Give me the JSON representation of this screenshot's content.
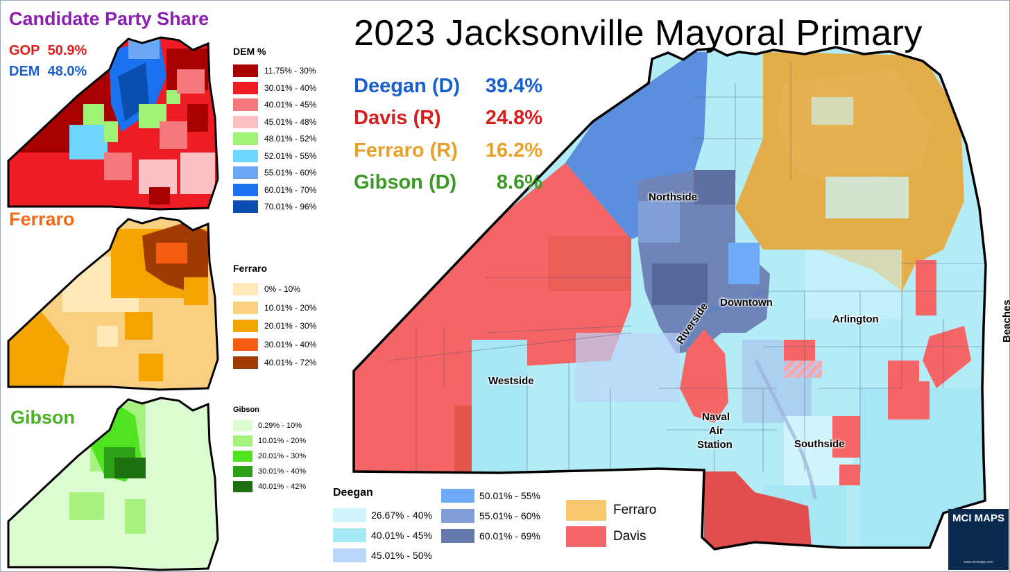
{
  "title": "2023 Jacksonville Mayoral Primary",
  "results": [
    {
      "name": "Deegan (D)",
      "pct": "39.4%",
      "color": "#1a5fd0"
    },
    {
      "name": "Davis (R)",
      "pct": "24.8%",
      "color": "#d81e1e"
    },
    {
      "name": "Ferraro (R)",
      "pct": "16.2%",
      "color": "#e8a02a"
    },
    {
      "name": "Gibson (D)",
      "pct": "8.6%",
      "color": "#3a9a24"
    }
  ],
  "party_share": {
    "title": "Candidate Party Share",
    "gop_label": "GOP",
    "gop_value": "50.9%",
    "dem_label": "DEM",
    "dem_value": "48.0%",
    "legend_title": "DEM %",
    "legend": [
      {
        "label": "11.75% - 30%",
        "color": "#a80000"
      },
      {
        "label": "30.01% - 40%",
        "color": "#ee1c24"
      },
      {
        "label": "40.01% - 45%",
        "color": "#f4787c"
      },
      {
        "label": "45.01% - 48%",
        "color": "#fbc0c2"
      },
      {
        "label": "48.01% - 52%",
        "color": "#9ff275"
      },
      {
        "label": "52.01% - 55%",
        "color": "#6fd6ff"
      },
      {
        "label": "55.01% - 60%",
        "color": "#6aa8f5"
      },
      {
        "label": "60.01% - 70%",
        "color": "#1a72f0"
      },
      {
        "label": "70.01% - 96%",
        "color": "#0a4fb0"
      }
    ]
  },
  "ferraro_map": {
    "title": "Ferraro",
    "legend_title": "Ferraro",
    "legend": [
      {
        "label": "0% - 10%",
        "color": "#fde9b8"
      },
      {
        "label": "10.01% - 20%",
        "color": "#f9cf82"
      },
      {
        "label": "20.01% - 30%",
        "color": "#f5a300"
      },
      {
        "label": "30.01% - 40%",
        "color": "#f55c12"
      },
      {
        "label": "40.01% - 72%",
        "color": "#a23a05"
      }
    ]
  },
  "gibson_map": {
    "title": "Gibson",
    "legend_title": "Gibson",
    "legend": [
      {
        "label": "0.29% - 10%",
        "color": "#dbfbd0"
      },
      {
        "label": "10.01% - 20%",
        "color": "#a7f27f"
      },
      {
        "label": "20.01% - 30%",
        "color": "#4fe41f"
      },
      {
        "label": "30.01% - 40%",
        "color": "#2ea018"
      },
      {
        "label": "40.01% - 42%",
        "color": "#1f7010"
      }
    ]
  },
  "deegan_legend": {
    "title": "Deegan",
    "items": [
      {
        "label": "26.67% - 40%",
        "color": "#cdf5fb"
      },
      {
        "label": "40.01% - 45%",
        "color": "#a6e6f5"
      },
      {
        "label": "45.01% - 50%",
        "color": "#bcd5fb"
      },
      {
        "label": "50.01% - 55%",
        "color": "#6eaaf5"
      },
      {
        "label": "55.01% - 60%",
        "color": "#7f9fd6"
      },
      {
        "label": "60.01% - 69%",
        "color": "#6579ad"
      }
    ]
  },
  "winner_legend": [
    {
      "label": "Ferraro",
      "color": "#f6c76b"
    },
    {
      "label": "Davis",
      "color": "#f56565"
    }
  ],
  "places": {
    "northside": "Northside",
    "downtown": "Downtown",
    "arlington": "Arlington",
    "riverside": "Riverside",
    "westside": "Westside",
    "nas1": "Naval",
    "nas2": "Air",
    "nas3": "Station",
    "southside": "Southside",
    "beaches": "Beaches"
  },
  "logo": {
    "text": "MCI MAPS",
    "url": "www.mcimaps.com"
  }
}
